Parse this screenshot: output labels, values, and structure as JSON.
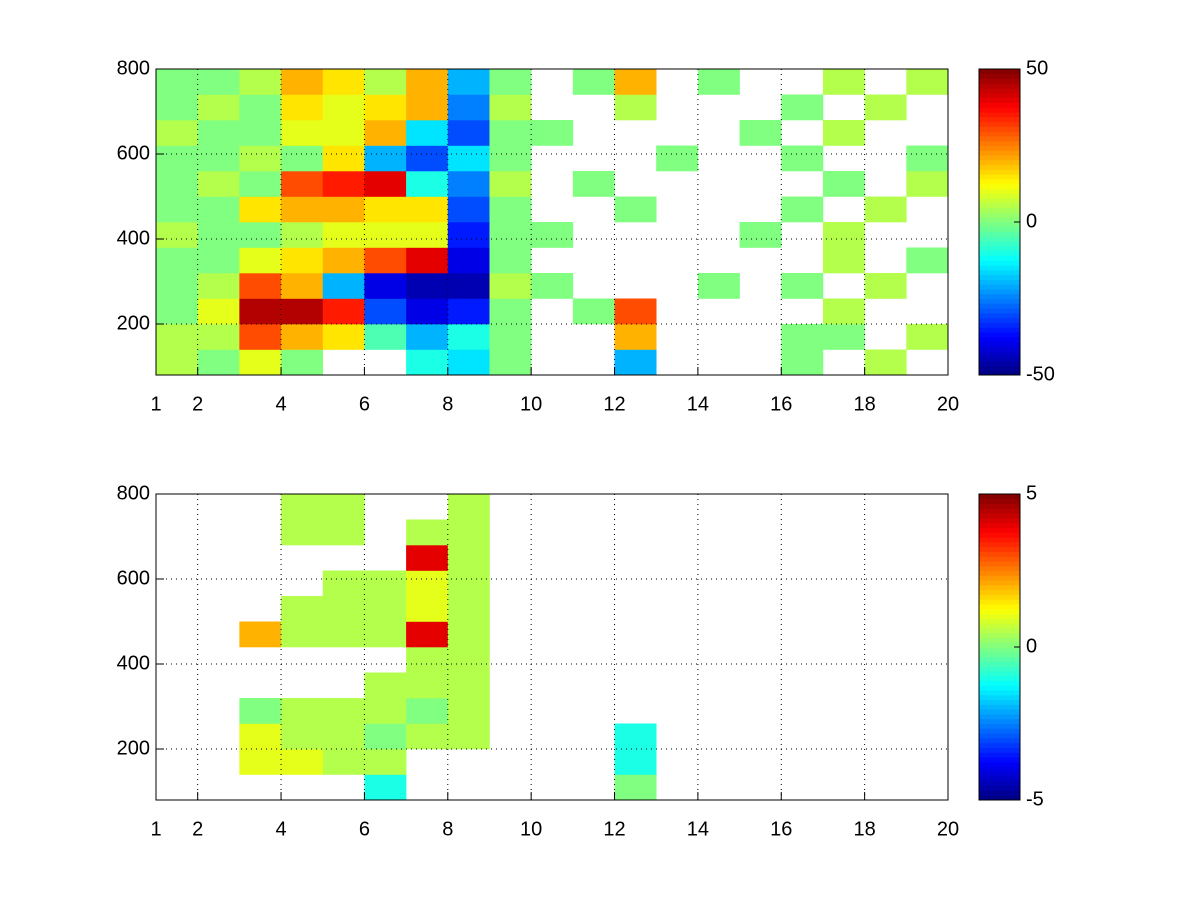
{
  "chart_data": [
    {
      "type": "heatmap",
      "x_bins": [
        1,
        2,
        3,
        4,
        5,
        6,
        7,
        8,
        9,
        10,
        11,
        12,
        13,
        14,
        15,
        16,
        17,
        18,
        19,
        20
      ],
      "y_bins": [
        80,
        140,
        200,
        260,
        320,
        380,
        440,
        500,
        560,
        620,
        680,
        740,
        800
      ],
      "values": [
        [
          5,
          0,
          10,
          0,
          null,
          null,
          -10,
          -15,
          0,
          null,
          null,
          -20,
          null,
          null,
          null,
          0,
          null,
          5,
          null
        ],
        [
          5,
          5,
          30,
          20,
          15,
          -5,
          -20,
          -10,
          0,
          null,
          null,
          20,
          null,
          null,
          null,
          0,
          0,
          null,
          5
        ],
        [
          0,
          10,
          45,
          45,
          35,
          -30,
          -40,
          -35,
          0,
          null,
          0,
          30,
          null,
          null,
          null,
          null,
          5,
          null,
          null
        ],
        [
          0,
          5,
          30,
          20,
          -20,
          -40,
          -45,
          -45,
          5,
          0,
          null,
          null,
          null,
          0,
          null,
          0,
          null,
          5,
          null
        ],
        [
          0,
          0,
          10,
          15,
          20,
          30,
          40,
          -40,
          0,
          null,
          null,
          null,
          null,
          null,
          null,
          null,
          5,
          null,
          0
        ],
        [
          5,
          0,
          0,
          5,
          10,
          10,
          10,
          -35,
          0,
          0,
          null,
          null,
          null,
          null,
          0,
          null,
          5,
          null,
          null
        ],
        [
          0,
          0,
          15,
          20,
          20,
          15,
          15,
          -30,
          0,
          null,
          null,
          0,
          null,
          null,
          null,
          0,
          null,
          5,
          null
        ],
        [
          0,
          5,
          0,
          30,
          35,
          40,
          -10,
          -25,
          5,
          null,
          0,
          null,
          null,
          null,
          null,
          null,
          0,
          null,
          5
        ],
        [
          0,
          0,
          5,
          0,
          15,
          -20,
          -30,
          -15,
          0,
          null,
          null,
          null,
          0,
          null,
          null,
          0,
          null,
          null,
          0
        ],
        [
          5,
          0,
          0,
          10,
          10,
          20,
          -15,
          -30,
          0,
          0,
          null,
          null,
          null,
          null,
          0,
          null,
          5,
          null,
          null
        ],
        [
          0,
          5,
          0,
          15,
          10,
          15,
          20,
          -25,
          5,
          null,
          null,
          5,
          null,
          null,
          null,
          0,
          null,
          5,
          null
        ],
        [
          0,
          0,
          5,
          20,
          15,
          5,
          20,
          -20,
          0,
          null,
          0,
          20,
          null,
          0,
          null,
          null,
          5,
          null,
          5
        ]
      ],
      "xlim": [
        1,
        20
      ],
      "ylim": [
        80,
        800
      ],
      "xticks": [
        1,
        2,
        4,
        6,
        8,
        10,
        12,
        14,
        16,
        18,
        20
      ],
      "yticks": [
        200,
        400,
        600,
        800
      ],
      "grid": true,
      "colormap": "jet",
      "clim": [
        -50,
        50
      ],
      "cticks": [
        -50,
        0,
        50
      ]
    },
    {
      "type": "heatmap",
      "x_bins": [
        1,
        2,
        3,
        4,
        5,
        6,
        7,
        8,
        9,
        10,
        11,
        12,
        13,
        14,
        15,
        16,
        17,
        18,
        19,
        20
      ],
      "y_bins": [
        80,
        140,
        200,
        260,
        320,
        380,
        440,
        500,
        560,
        620,
        680,
        740,
        800
      ],
      "values": [
        [
          null,
          null,
          null,
          null,
          null,
          -1,
          null,
          null,
          null,
          null,
          null,
          0,
          null,
          null,
          null,
          null,
          null,
          null,
          null
        ],
        [
          null,
          null,
          1,
          1,
          0.5,
          0.5,
          null,
          null,
          null,
          null,
          null,
          -1,
          null,
          null,
          null,
          null,
          null,
          null,
          null
        ],
        [
          null,
          null,
          1,
          0.5,
          0.5,
          0,
          0.5,
          0.5,
          null,
          null,
          null,
          -1,
          null,
          null,
          null,
          null,
          null,
          null,
          null
        ],
        [
          null,
          null,
          0,
          0.5,
          0.5,
          0.5,
          0,
          0.5,
          null,
          null,
          null,
          null,
          null,
          null,
          null,
          null,
          null,
          null,
          null
        ],
        [
          null,
          null,
          null,
          null,
          null,
          0.5,
          0.5,
          0.5,
          null,
          null,
          null,
          null,
          null,
          null,
          null,
          null,
          null,
          null,
          null
        ],
        [
          null,
          null,
          null,
          null,
          null,
          null,
          0.5,
          0.5,
          null,
          null,
          null,
          null,
          null,
          null,
          null,
          null,
          null,
          null,
          null
        ],
        [
          null,
          null,
          2,
          0.5,
          0.5,
          0.5,
          4,
          0.5,
          null,
          null,
          null,
          null,
          null,
          null,
          null,
          null,
          null,
          null,
          null
        ],
        [
          null,
          null,
          null,
          0.5,
          0.5,
          0.5,
          1,
          0.5,
          null,
          null,
          null,
          null,
          null,
          null,
          null,
          null,
          null,
          null,
          null
        ],
        [
          null,
          null,
          null,
          null,
          0.5,
          0.5,
          1,
          0.5,
          null,
          null,
          null,
          null,
          null,
          null,
          null,
          null,
          null,
          null,
          null
        ],
        [
          null,
          null,
          null,
          null,
          null,
          null,
          4,
          0.5,
          null,
          null,
          null,
          null,
          null,
          null,
          null,
          null,
          null,
          null,
          null
        ],
        [
          null,
          null,
          null,
          0.5,
          0.5,
          null,
          0.5,
          0.5,
          null,
          null,
          null,
          null,
          null,
          null,
          null,
          null,
          null,
          null,
          null
        ],
        [
          null,
          null,
          null,
          0.5,
          0.5,
          null,
          null,
          0.5,
          null,
          null,
          null,
          null,
          null,
          null,
          null,
          null,
          null,
          null,
          null
        ]
      ],
      "xlim": [
        1,
        20
      ],
      "ylim": [
        80,
        800
      ],
      "xticks": [
        1,
        2,
        4,
        6,
        8,
        10,
        12,
        14,
        16,
        18,
        20
      ],
      "yticks": [
        200,
        400,
        600,
        800
      ],
      "grid": true,
      "colormap": "jet",
      "clim": [
        -5,
        5
      ],
      "cticks": [
        -5,
        0,
        5
      ]
    }
  ]
}
